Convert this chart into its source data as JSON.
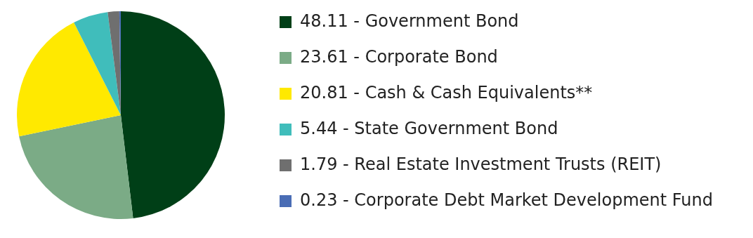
{
  "chart_data": {
    "type": "pie",
    "categories": [
      "Government Bond",
      "Corporate Bond",
      "Cash & Cash Equivalents**",
      "State Government Bond",
      "Real Estate Investment Trusts (REIT)",
      "Corporate Debt Market Development Fund"
    ],
    "values": [
      48.11,
      23.61,
      20.81,
      5.44,
      1.79,
      0.23
    ],
    "value_labels": [
      "48.11 -",
      "23.61 -",
      "20.81 -",
      "5.44 -",
      "1.79 -",
      "0.23 -"
    ],
    "colors": [
      "#003f17",
      "#7bab86",
      "#ffe900",
      "#40bdbb",
      "#6f6f6f",
      "#4a6db5"
    ],
    "legend": "right"
  }
}
